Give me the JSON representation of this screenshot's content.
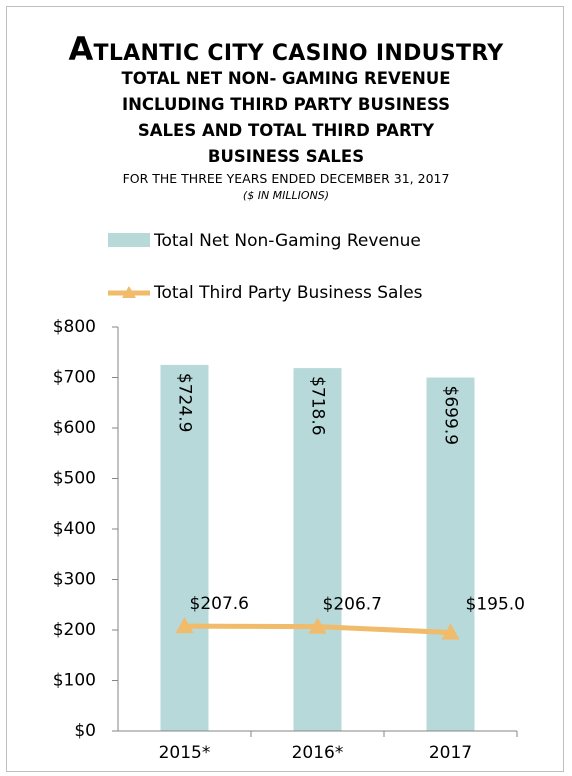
{
  "chart_data": {
    "type": "bar_line",
    "heading": "ATLANTIC CITY CASINO INDUSTRY",
    "title": "TOTAL NET NON- GAMING REVENUE INCLUDING THIRD PARTY BUSINESS SALES AND TOTAL THIRD PARTY BUSINESS SALES",
    "subtitle": "FOR THE THREE YEARS ENDED DECEMBER 31, 2017",
    "note": "($ IN MILLIONS)",
    "categories": [
      "2015*",
      "2016*",
      "2017"
    ],
    "series": [
      {
        "name": "Total Net Non-Gaming Revenue",
        "type": "bar",
        "color": "#b7d9d9",
        "values": [
          724.9,
          718.6,
          699.9
        ],
        "value_labels": [
          "$724.9",
          "$718.6",
          "$699.9"
        ]
      },
      {
        "name": "Total Third Party Business Sales",
        "type": "line",
        "color": "#f0bb6a",
        "values": [
          207.6,
          206.7,
          195.0
        ],
        "value_labels": [
          "$207.6",
          "$206.7",
          "$195.0"
        ]
      }
    ],
    "ylim": [
      0,
      800
    ],
    "yticks": [
      {
        "value": 0,
        "label": "$0"
      },
      {
        "value": 100,
        "label": "$100"
      },
      {
        "value": 200,
        "label": "$200"
      },
      {
        "value": 300,
        "label": "$300"
      },
      {
        "value": 400,
        "label": "$400"
      },
      {
        "value": 500,
        "label": "$500"
      },
      {
        "value": 600,
        "label": "$600"
      },
      {
        "value": 700,
        "label": "$700"
      },
      {
        "value": 800,
        "label": "$800"
      }
    ],
    "legend": "top"
  }
}
